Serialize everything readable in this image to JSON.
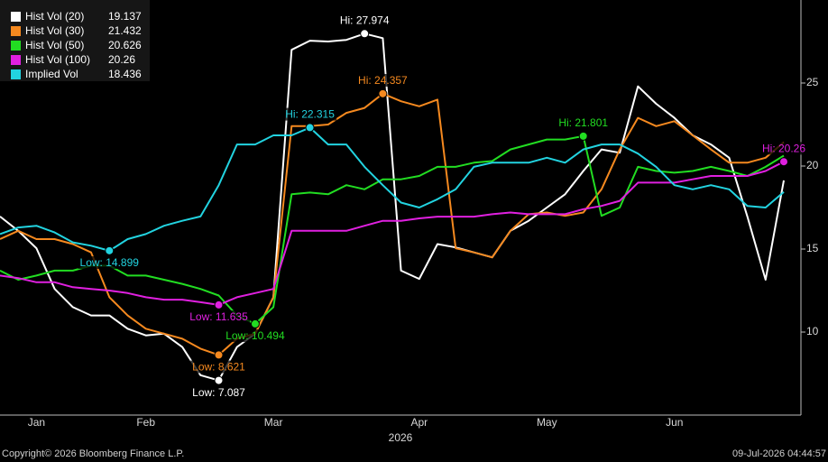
{
  "chart_data": {
    "type": "line",
    "x_label": "2026",
    "footer_left": "Copyright© 2026 Bloomberg Finance L.P.",
    "footer_right": "09-Jul-2026 04:44:57",
    "categories": [
      null,
      null,
      "Jan",
      null,
      null,
      null,
      null,
      null,
      "Feb",
      null,
      null,
      null,
      null,
      null,
      null,
      "Mar",
      null,
      null,
      null,
      null,
      null,
      null,
      null,
      "Apr",
      null,
      null,
      null,
      null,
      null,
      null,
      "May",
      null,
      null,
      null,
      null,
      null,
      null,
      "Jun",
      null,
      null,
      null,
      null,
      null,
      null
    ],
    "ylim": [
      5,
      30
    ],
    "yticks": [
      10,
      15,
      20,
      25
    ],
    "series": [
      {
        "name": "Hist Vol (20)",
        "color": "#ffffff",
        "values": [
          16.96,
          16.1,
          15.05,
          12.6,
          11.5,
          11.0,
          11.0,
          10.2,
          9.8,
          9.9,
          9.1,
          7.4,
          7.087,
          9.1,
          9.9,
          12.1,
          27.0,
          27.55,
          27.5,
          27.6,
          27.974,
          27.7,
          13.7,
          13.2,
          15.3,
          15.1,
          14.8,
          14.5,
          16.1,
          16.7,
          17.5,
          18.3,
          19.7,
          21.0,
          20.8,
          24.8,
          23.75,
          22.9,
          21.85,
          21.3,
          20.5,
          16.96,
          13.15,
          19.137
        ],
        "high": {
          "label": "Hi: 27.974",
          "value": 27.974
        },
        "low": {
          "label": "Low: 7.087",
          "value": 7.087
        }
      },
      {
        "name": "Hist Vol (30)",
        "color": "#f5891f",
        "values": [
          15.6,
          16.1,
          15.6,
          15.6,
          15.3,
          14.8,
          12.1,
          11.0,
          10.2,
          9.9,
          9.6,
          9.0,
          8.621,
          9.6,
          9.9,
          12.1,
          22.4,
          22.4,
          22.5,
          23.2,
          23.5,
          24.357,
          23.9,
          23.6,
          24.0,
          15.05,
          14.8,
          14.5,
          16.1,
          17.1,
          17.2,
          17.0,
          17.2,
          18.6,
          21.0,
          22.9,
          22.4,
          22.7,
          21.85,
          21.0,
          20.2,
          20.2,
          20.5,
          21.432
        ],
        "high": {
          "label": "Hi: 24.357",
          "value": 24.357
        },
        "low": {
          "label": "Low: 8.621",
          "value": 8.621
        }
      },
      {
        "name": "Hist Vol (50)",
        "color": "#22dd22",
        "values": [
          13.7,
          13.15,
          13.4,
          13.7,
          13.7,
          14.0,
          14.0,
          13.4,
          13.4,
          13.15,
          12.9,
          12.6,
          12.2,
          11.0,
          10.494,
          11.5,
          18.3,
          18.4,
          18.3,
          18.85,
          18.6,
          19.2,
          19.2,
          19.4,
          19.95,
          19.95,
          20.2,
          20.3,
          21.0,
          21.3,
          21.6,
          21.6,
          21.801,
          17.0,
          17.5,
          19.95,
          19.7,
          19.6,
          19.7,
          19.95,
          19.7,
          19.4,
          19.95,
          20.626
        ],
        "high": {
          "label": "Hi: 21.801",
          "value": 21.801
        },
        "low": {
          "label": "Low: 10.494",
          "value": 10.494
        }
      },
      {
        "name": "Hist Vol (100)",
        "color": "#e020e0",
        "values": [
          13.4,
          13.25,
          13.0,
          13.0,
          12.7,
          12.6,
          12.5,
          12.35,
          12.1,
          11.95,
          11.95,
          11.8,
          11.635,
          12.1,
          12.35,
          12.6,
          16.1,
          16.1,
          16.1,
          16.1,
          16.4,
          16.7,
          16.7,
          16.85,
          16.95,
          16.95,
          16.95,
          17.1,
          17.2,
          17.1,
          17.1,
          17.1,
          17.4,
          17.6,
          17.9,
          19.0,
          19.0,
          19.0,
          19.2,
          19.4,
          19.4,
          19.4,
          19.7,
          20.26
        ],
        "high": {
          "label": "Hi: 20.26",
          "value": 20.26
        },
        "low": {
          "label": "Low: 11.635",
          "value": 11.635
        }
      },
      {
        "name": "Implied Vol",
        "color": "#22d3e0",
        "values": [
          15.9,
          16.3,
          16.4,
          16.0,
          15.4,
          15.2,
          14.899,
          15.6,
          15.9,
          16.4,
          16.7,
          16.96,
          18.85,
          21.3,
          21.3,
          21.85,
          21.85,
          22.315,
          21.3,
          21.3,
          19.95,
          18.85,
          17.8,
          17.5,
          18.0,
          18.6,
          19.95,
          20.2,
          20.2,
          20.2,
          20.5,
          20.2,
          21.0,
          21.3,
          21.3,
          20.75,
          19.95,
          18.85,
          18.6,
          18.85,
          18.6,
          17.6,
          17.5,
          18.436
        ],
        "high": {
          "label": "Hi: 22.315",
          "value": 22.315
        },
        "low": {
          "label": "Low: 14.899",
          "value": 14.899
        }
      }
    ]
  }
}
